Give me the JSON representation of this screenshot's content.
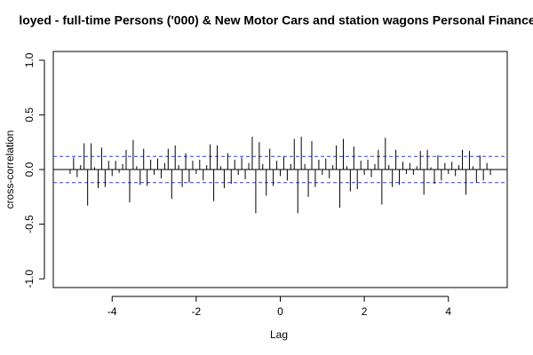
{
  "chart_data": {
    "type": "ccf",
    "title": "loyed - full-time Persons ('000) & New Motor Cars and station wagons Personal Finance",
    "xlabel": "Lag",
    "ylabel": "cross-correlation",
    "x": [
      -5,
      -4.917,
      -4.833,
      -4.75,
      -4.667,
      -4.583,
      -4.5,
      -4.417,
      -4.333,
      -4.25,
      -4.167,
      -4.083,
      -4,
      -3.917,
      -3.833,
      -3.75,
      -3.667,
      -3.583,
      -3.5,
      -3.417,
      -3.333,
      -3.25,
      -3.167,
      -3.083,
      -3,
      -2.917,
      -2.833,
      -2.75,
      -2.667,
      -2.583,
      -2.5,
      -2.417,
      -2.333,
      -2.25,
      -2.167,
      -2.083,
      -2,
      -1.917,
      -1.833,
      -1.75,
      -1.667,
      -1.583,
      -1.5,
      -1.417,
      -1.333,
      -1.25,
      -1.167,
      -1.083,
      -1,
      -0.917,
      -0.833,
      -0.75,
      -0.667,
      -0.583,
      -0.5,
      -0.417,
      -0.333,
      -0.25,
      -0.167,
      -0.083,
      0,
      0.083,
      0.167,
      0.25,
      0.333,
      0.417,
      0.5,
      0.583,
      0.667,
      0.75,
      0.833,
      0.917,
      1,
      1.083,
      1.167,
      1.25,
      1.333,
      1.417,
      1.5,
      1.583,
      1.667,
      1.75,
      1.833,
      1.917,
      2,
      2.083,
      2.167,
      2.25,
      2.333,
      2.417,
      2.5,
      2.583,
      2.667,
      2.75,
      2.833,
      2.917,
      3,
      3.083,
      3.167,
      3.25,
      3.333,
      3.417,
      3.5,
      3.583,
      3.667,
      3.75,
      3.833,
      3.917,
      4,
      4.083,
      4.167,
      4.25,
      4.333,
      4.417,
      4.5,
      4.583,
      4.667,
      4.75,
      4.833,
      4.917,
      5
    ],
    "values": [
      -0.04,
      0.11,
      -0.07,
      0.04,
      0.24,
      -0.33,
      0.24,
      0.02,
      -0.17,
      0.2,
      -0.16,
      0.08,
      -0.06,
      0.08,
      -0.03,
      0.05,
      0.18,
      -0.3,
      0.27,
      0.03,
      -0.14,
      0.19,
      -0.15,
      0.09,
      -0.05,
      0.1,
      -0.08,
      0.06,
      0.19,
      -0.27,
      0.22,
      0.04,
      -0.16,
      0.15,
      -0.12,
      0.08,
      -0.04,
      0.09,
      -0.1,
      0.04,
      0.23,
      -0.29,
      0.22,
      0.03,
      -0.17,
      0.15,
      -0.13,
      0.09,
      -0.05,
      0.11,
      -0.09,
      0.06,
      0.3,
      -0.4,
      0.25,
      0.05,
      -0.24,
      0.19,
      -0.15,
      0.08,
      -0.06,
      0.12,
      -0.1,
      0.05,
      0.28,
      -0.4,
      0.3,
      0.05,
      -0.25,
      0.26,
      -0.16,
      0.09,
      -0.05,
      0.1,
      -0.08,
      0.04,
      0.22,
      -0.35,
      0.28,
      0.03,
      -0.2,
      0.21,
      -0.18,
      0.08,
      -0.05,
      0.09,
      -0.07,
      0.05,
      0.18,
      -0.32,
      0.29,
      0.04,
      -0.16,
      0.18,
      -0.14,
      0.07,
      -0.04,
      0.06,
      -0.05,
      0.03,
      0.17,
      -0.23,
      0.18,
      0.02,
      -0.13,
      0.13,
      -0.1,
      0.06,
      -0.04,
      0.07,
      -0.06,
      0.04,
      0.18,
      -0.23,
      0.17,
      0.03,
      -0.12,
      0.13,
      -0.1,
      0.06,
      -0.05
    ],
    "color": "#000000",
    "reference_lines": [
      0.12,
      -0.12
    ],
    "reference_color": "#3b3bd6",
    "xlim": [
      -5.4,
      5.4
    ],
    "ylim": [
      -1.08,
      1.08
    ],
    "xticks": [
      -4,
      -2,
      0,
      2,
      4
    ],
    "yticks": [
      {
        "value": -1,
        "label": "-1.0"
      },
      -0.5,
      {
        "value": 0,
        "label": "0.0"
      },
      0.5,
      {
        "value": 1,
        "label": "1.0"
      }
    ]
  }
}
